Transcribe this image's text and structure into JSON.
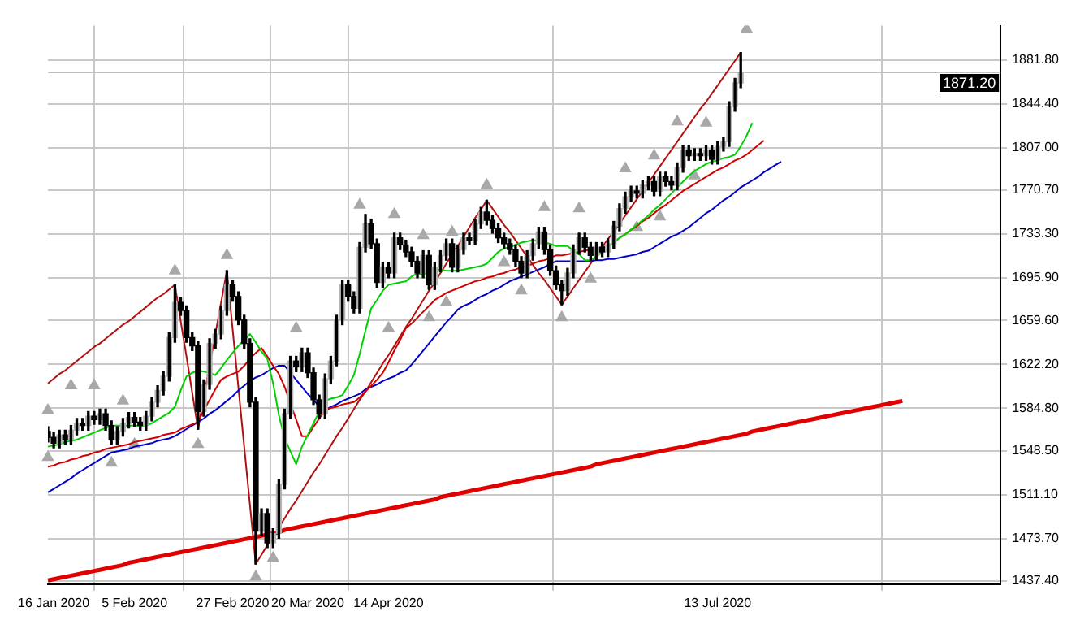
{
  "chart_data": {
    "type": "candlestick",
    "categories": [
      null,
      "16 Jan 2020",
      null,
      null,
      null,
      null,
      null,
      null,
      null,
      null,
      null,
      null,
      null,
      null,
      null,
      "5 Feb 2020",
      null,
      null,
      null,
      null,
      null,
      null,
      null,
      null,
      null,
      null,
      null,
      null,
      null,
      null,
      null,
      null,
      "27 Feb 2020",
      null,
      null,
      null,
      null,
      null,
      null,
      null,
      null,
      null,
      null,
      null,
      null,
      "20 Mar 2020",
      null,
      null,
      null,
      null,
      null,
      null,
      null,
      null,
      null,
      null,
      null,
      null,
      null,
      "14 Apr 2020",
      null,
      null,
      null,
      null,
      null,
      null,
      null,
      null,
      null,
      null,
      null,
      null,
      null,
      null,
      null,
      null,
      null,
      null,
      null,
      null,
      null,
      null,
      null,
      null,
      null,
      null,
      null,
      null,
      null,
      null,
      null,
      null,
      null,
      null,
      null,
      null,
      null,
      null,
      null,
      null,
      null,
      null,
      null,
      null,
      null,
      null,
      null,
      null,
      null,
      null,
      null,
      null,
      null,
      null,
      null,
      null,
      "13 Jul 2020",
      null,
      null,
      null,
      null,
      null,
      null,
      null,
      null,
      null,
      null,
      null,
      null,
      null,
      null,
      null,
      null,
      null,
      null,
      null,
      null,
      null,
      null,
      null,
      null,
      null,
      null,
      null,
      null,
      null,
      null,
      null,
      null,
      null,
      null,
      null,
      null,
      null,
      null,
      null,
      null,
      null,
      null,
      null,
      null,
      null,
      null,
      null,
      null,
      null
    ],
    "ohlc": [
      [
        1565,
        1569,
        1556,
        1560
      ],
      [
        1560,
        1564,
        1551,
        1555
      ],
      [
        1555,
        1566,
        1551,
        1562
      ],
      [
        1562,
        1566,
        1554,
        1558
      ],
      [
        1558,
        1570,
        1554,
        1566
      ],
      [
        1566,
        1576,
        1562,
        1572
      ],
      [
        1572,
        1576,
        1566,
        1570
      ],
      [
        1570,
        1582,
        1566,
        1578
      ],
      [
        1578,
        1582,
        1571,
        1575
      ],
      [
        1575,
        1584,
        1571,
        1580
      ],
      [
        1580,
        1584,
        1566,
        1570
      ],
      [
        1570,
        1574,
        1554,
        1558
      ],
      [
        1558,
        1569,
        1554,
        1565
      ],
      [
        1565,
        1576,
        1561,
        1572
      ],
      [
        1572,
        1581,
        1568,
        1577
      ],
      [
        1577,
        1581,
        1569,
        1573
      ],
      [
        1573,
        1577,
        1566,
        1570
      ],
      [
        1570,
        1582,
        1566,
        1578
      ],
      [
        1578,
        1594,
        1574,
        1590
      ],
      [
        1590,
        1604,
        1586,
        1600
      ],
      [
        1600,
        1616,
        1596,
        1612
      ],
      [
        1612,
        1649,
        1608,
        1645
      ],
      [
        1645,
        1690,
        1641,
        1675
      ],
      [
        1675,
        1679,
        1664,
        1668
      ],
      [
        1668,
        1672,
        1641,
        1645
      ],
      [
        1645,
        1649,
        1634,
        1638
      ],
      [
        1638,
        1642,
        1567,
        1582
      ],
      [
        1582,
        1609,
        1578,
        1605
      ],
      [
        1605,
        1644,
        1601,
        1640
      ],
      [
        1640,
        1652,
        1636,
        1648
      ],
      [
        1648,
        1672,
        1644,
        1668
      ],
      [
        1668,
        1702,
        1664,
        1690
      ],
      [
        1690,
        1694,
        1676,
        1680
      ],
      [
        1680,
        1684,
        1656,
        1660
      ],
      [
        1660,
        1664,
        1636,
        1640
      ],
      [
        1640,
        1644,
        1586,
        1590
      ],
      [
        1590,
        1594,
        1452,
        1480
      ],
      [
        1480,
        1499,
        1476,
        1495
      ],
      [
        1495,
        1499,
        1466,
        1470
      ],
      [
        1470,
        1482,
        1466,
        1478
      ],
      [
        1478,
        1524,
        1474,
        1520
      ],
      [
        1520,
        1584,
        1516,
        1580
      ],
      [
        1580,
        1629,
        1576,
        1625
      ],
      [
        1625,
        1629,
        1616,
        1620
      ],
      [
        1620,
        1636,
        1616,
        1632
      ],
      [
        1632,
        1636,
        1611,
        1615
      ],
      [
        1615,
        1619,
        1588,
        1592
      ],
      [
        1592,
        1596,
        1576,
        1580
      ],
      [
        1580,
        1614,
        1576,
        1610
      ],
      [
        1610,
        1629,
        1606,
        1625
      ],
      [
        1625,
        1664,
        1621,
        1660
      ],
      [
        1660,
        1694,
        1656,
        1690
      ],
      [
        1690,
        1694,
        1676,
        1680
      ],
      [
        1680,
        1684,
        1666,
        1670
      ],
      [
        1670,
        1726,
        1666,
        1722
      ],
      [
        1722,
        1750,
        1718,
        1742
      ],
      [
        1742,
        1746,
        1721,
        1725
      ],
      [
        1725,
        1729,
        1688,
        1692
      ],
      [
        1692,
        1709,
        1688,
        1705
      ],
      [
        1705,
        1709,
        1696,
        1700
      ],
      [
        1700,
        1734,
        1696,
        1730
      ],
      [
        1730,
        1734,
        1720,
        1724
      ],
      [
        1724,
        1728,
        1714,
        1718
      ],
      [
        1718,
        1722,
        1706,
        1710
      ],
      [
        1710,
        1714,
        1696,
        1700
      ],
      [
        1700,
        1719,
        1696,
        1715
      ],
      [
        1715,
        1719,
        1686,
        1690
      ],
      [
        1690,
        1709,
        1686,
        1705
      ],
      [
        1705,
        1719,
        1701,
        1715
      ],
      [
        1715,
        1729,
        1711,
        1725
      ],
      [
        1725,
        1729,
        1701,
        1705
      ],
      [
        1705,
        1724,
        1701,
        1720
      ],
      [
        1720,
        1734,
        1716,
        1730
      ],
      [
        1730,
        1734,
        1724,
        1728
      ],
      [
        1728,
        1746,
        1724,
        1742
      ],
      [
        1742,
        1756,
        1738,
        1752
      ],
      [
        1752,
        1762,
        1741,
        1745
      ],
      [
        1745,
        1749,
        1734,
        1738
      ],
      [
        1738,
        1742,
        1726,
        1730
      ],
      [
        1730,
        1734,
        1721,
        1725
      ],
      [
        1725,
        1729,
        1716,
        1720
      ],
      [
        1720,
        1724,
        1706,
        1710
      ],
      [
        1710,
        1714,
        1696,
        1700
      ],
      [
        1700,
        1719,
        1696,
        1715
      ],
      [
        1715,
        1729,
        1711,
        1725
      ],
      [
        1725,
        1739,
        1721,
        1735
      ],
      [
        1735,
        1739,
        1716,
        1720
      ],
      [
        1720,
        1724,
        1698,
        1702
      ],
      [
        1702,
        1706,
        1686,
        1690
      ],
      [
        1690,
        1694,
        1673,
        1685
      ],
      [
        1685,
        1704,
        1681,
        1700
      ],
      [
        1700,
        1724,
        1696,
        1720
      ],
      [
        1720,
        1734,
        1716,
        1730
      ],
      [
        1730,
        1734,
        1718,
        1722
      ],
      [
        1722,
        1726,
        1711,
        1715
      ],
      [
        1715,
        1726,
        1711,
        1722
      ],
      [
        1722,
        1726,
        1714,
        1718
      ],
      [
        1718,
        1729,
        1714,
        1725
      ],
      [
        1725,
        1744,
        1721,
        1740
      ],
      [
        1740,
        1759,
        1736,
        1755
      ],
      [
        1755,
        1769,
        1751,
        1765
      ],
      [
        1765,
        1774,
        1761,
        1770
      ],
      [
        1770,
        1774,
        1764,
        1768
      ],
      [
        1768,
        1779,
        1764,
        1775
      ],
      [
        1775,
        1782,
        1771,
        1778
      ],
      [
        1778,
        1782,
        1766,
        1770
      ],
      [
        1770,
        1786,
        1766,
        1782
      ],
      [
        1782,
        1786,
        1774,
        1778
      ],
      [
        1778,
        1782,
        1771,
        1775
      ],
      [
        1775,
        1794,
        1771,
        1790
      ],
      [
        1790,
        1809,
        1786,
        1805
      ],
      [
        1805,
        1809,
        1796,
        1800
      ],
      [
        1800,
        1806,
        1796,
        1802
      ],
      [
        1802,
        1806,
        1796,
        1800
      ],
      [
        1800,
        1809,
        1796,
        1805
      ],
      [
        1805,
        1809,
        1793,
        1797
      ],
      [
        1797,
        1812,
        1793,
        1808
      ],
      [
        1808,
        1816,
        1804,
        1812
      ],
      [
        1812,
        1846,
        1808,
        1842
      ],
      [
        1842,
        1866,
        1838,
        1862
      ],
      [
        1862,
        1888,
        1858,
        1871.2
      ],
      null,
      null,
      null,
      null,
      null,
      null,
      null,
      null,
      null,
      null,
      null,
      null,
      null,
      null,
      null,
      null,
      null,
      null,
      null,
      null,
      null,
      null,
      null,
      null,
      null,
      null,
      null,
      null,
      null,
      null,
      null,
      null,
      null,
      null,
      null,
      null,
      null,
      null,
      null,
      null,
      null,
      null,
      null,
      null,
      null
    ],
    "series": [
      {
        "type": "line",
        "color": "#00d000",
        "values": [
          1552,
          1553,
          1554,
          1556,
          1557,
          1558,
          1560,
          1562,
          1564,
          1566,
          1568,
          1570,
          1570,
          1570,
          1570,
          1570,
          1570,
          1570,
          1572,
          1575,
          1578,
          1581,
          1586,
          1600,
          1612,
          1615,
          1617,
          1616,
          1615,
          1613,
          1619,
          1626,
          1632,
          1638,
          1643,
          1648,
          1641,
          1633,
          1627,
          1606,
          1579,
          1559,
          1548,
          1537,
          1552,
          1562,
          1572,
          1582,
          1591,
          1593,
          1594,
          1596,
          1604,
          1613,
          1631,
          1651,
          1670,
          1677,
          1685,
          1690,
          1691,
          1692,
          1693,
          1697,
          1700,
          1698,
          1703,
          1703,
          1703,
          1702,
          1702,
          1702,
          1703,
          1704,
          1705,
          1706,
          1708,
          1713,
          1718,
          1721,
          1722,
          1724,
          1726,
          1727,
          1728,
          1727,
          1726,
          1725,
          1723,
          1723,
          1723,
          1719,
          1716,
          1711,
          1711,
          1714,
          1718,
          1722,
          1726,
          1730,
          1733,
          1737,
          1741,
          1745,
          1749,
          1754,
          1758,
          1763,
          1768,
          1773,
          1778,
          1783,
          1787,
          1790,
          1793,
          1795,
          1796,
          1798,
          1799,
          1801,
          1808,
          1817,
          1828,
          null,
          null,
          null,
          null,
          null,
          null,
          null,
          null,
          null,
          null,
          null,
          null,
          null,
          null,
          null,
          null,
          null,
          null,
          null,
          null,
          null,
          null,
          null,
          null,
          null,
          null,
          null,
          null,
          null,
          null,
          null,
          null,
          null,
          null,
          null,
          null,
          null,
          null,
          null,
          null,
          null,
          null,
          null
        ]
      },
      {
        "type": "line",
        "color": "#d00000",
        "values": [
          1535,
          1536,
          1538,
          1539,
          1541,
          1542,
          1544,
          1545,
          1547,
          1548,
          1550,
          1551,
          1552,
          1553,
          1554,
          1556,
          1557,
          1558,
          1559,
          1560,
          1562,
          1563,
          1564,
          1567,
          1569,
          1571,
          1573,
          1583,
          1592,
          1601,
          1609,
          1612,
          1614,
          1616,
          1621,
          1627,
          1632,
          1636,
          1629,
          1621,
          1614,
          1603,
          1589,
          1575,
          1561,
          1561,
          1569,
          1576,
          1583,
          1585,
          1586,
          1588,
          1589,
          1590,
          1594,
          1599,
          1604,
          1609,
          1615,
          1624,
          1634,
          1643,
          1653,
          1657,
          1662,
          1667,
          1672,
          1677,
          1680,
          1683,
          1685,
          1687,
          1689,
          1691,
          1693,
          1694,
          1696,
          1697,
          1699,
          1700,
          1702,
          1703,
          1705,
          1706,
          1708,
          1710,
          1711,
          1713,
          1715,
          1715,
          1716,
          1717,
          1718,
          1719,
          1720,
          1721,
          1722,
          1723,
          1726,
          1730,
          1733,
          1737,
          1740,
          1744,
          1747,
          1751,
          1755,
          1758,
          1762,
          1766,
          1770,
          1773,
          1776,
          1779,
          1782,
          1785,
          1788,
          1790,
          1793,
          1796,
          1798,
          1801,
          1805,
          1809,
          1813,
          null,
          null,
          null,
          null,
          null,
          null,
          null,
          null,
          null,
          null,
          null,
          null,
          null,
          null,
          null,
          null,
          null,
          null,
          null,
          null,
          null,
          null,
          null,
          null,
          null,
          null,
          null,
          null,
          null,
          null,
          null,
          null,
          null,
          null,
          null,
          null,
          null,
          null,
          null,
          null,
          null
        ]
      },
      {
        "type": "line",
        "color": "#0000c8",
        "values": [
          1513,
          1516,
          1519,
          1522,
          1525,
          1529,
          1532,
          1535,
          1538,
          1541,
          1544,
          1547,
          1548,
          1549,
          1550,
          1552,
          1553,
          1554,
          1555,
          1557,
          1558,
          1559,
          1561,
          1564,
          1567,
          1570,
          1573,
          1576,
          1580,
          1583,
          1587,
          1591,
          1595,
          1600,
          1604,
          1608,
          1611,
          1613,
          1616,
          1619,
          1621,
          1621,
          1615,
          1609,
          1603,
          1597,
          1592,
          1586,
          1583,
          1586,
          1588,
          1591,
          1593,
          1595,
          1597,
          1601,
          1603,
          1605,
          1608,
          1610,
          1612,
          1615,
          1617,
          1622,
          1628,
          1634,
          1640,
          1646,
          1652,
          1658,
          1663,
          1669,
          1672,
          1674,
          1677,
          1680,
          1682,
          1685,
          1687,
          1690,
          1693,
          1695,
          1697,
          1699,
          1701,
          1703,
          1705,
          1708,
          1710,
          1710,
          1710,
          1710,
          1710,
          1710,
          1710,
          1711,
          1711,
          1712,
          1712,
          1713,
          1714,
          1715,
          1716,
          1718,
          1719,
          1722,
          1725,
          1728,
          1731,
          1733,
          1736,
          1739,
          1743,
          1747,
          1751,
          1754,
          1758,
          1762,
          1765,
          1769,
          1773,
          1776,
          1779,
          1782,
          1786,
          1789,
          1792,
          1795,
          null,
          null,
          null,
          null,
          null,
          null,
          null,
          null,
          null,
          null,
          null,
          null,
          null,
          null,
          null,
          null,
          null,
          null,
          null,
          null,
          null,
          null,
          null,
          null,
          null,
          null,
          null,
          null,
          null,
          null,
          null,
          null,
          null,
          null,
          null,
          null,
          null,
          null
        ]
      },
      {
        "type": "line",
        "color": "#b01010",
        "values": [
          1606,
          1610,
          1614,
          1617,
          1621,
          1625,
          1629,
          1633,
          1637,
          1640,
          1644,
          1648,
          1652,
          1656,
          1659,
          1663,
          1667,
          1671,
          1675,
          1679,
          1682,
          1686,
          1690,
          1659,
          1629,
          1598,
          1567,
          1594,
          1621,
          1648,
          1675,
          1702,
          1652,
          1602,
          1552,
          1502,
          1452,
          1460,
          1468,
          1475,
          1483,
          1491,
          1499,
          1506,
          1514,
          1522,
          1530,
          1537,
          1545,
          1553,
          1561,
          1568,
          1576,
          1584,
          1592,
          1599,
          1607,
          1615,
          1623,
          1630,
          1638,
          1646,
          1654,
          1661,
          1669,
          1677,
          1685,
          1692,
          1700,
          1708,
          1716,
          1723,
          1731,
          1739,
          1747,
          1754,
          1762,
          1755,
          1748,
          1741,
          1735,
          1728,
          1721,
          1714,
          1707,
          1700,
          1694,
          1687,
          1680,
          1673,
          1680,
          1687,
          1694,
          1701,
          1708,
          1715,
          1722,
          1729,
          1735,
          1742,
          1749,
          1756,
          1763,
          1770,
          1777,
          1784,
          1791,
          1798,
          1805,
          1812,
          1819,
          1826,
          1833,
          1840,
          1846,
          1853,
          1860,
          1867,
          1874,
          1881,
          1888,
          null,
          null,
          null,
          null,
          null,
          null,
          null,
          null,
          null,
          null,
          null,
          null,
          null,
          null,
          null,
          null,
          null,
          null,
          null,
          null,
          null,
          null,
          null,
          null,
          null,
          null,
          null,
          null,
          null,
          null,
          null,
          null,
          null,
          null,
          null,
          null,
          null,
          null,
          null,
          null,
          null,
          null,
          null,
          null,
          null
        ]
      },
      {
        "type": "line",
        "color": "#e00000",
        "values": [
          1438,
          1439,
          1440,
          1441,
          1442,
          1443,
          1444,
          1445,
          1446,
          1447,
          1448,
          1449,
          1450,
          1451,
          1453,
          1454,
          1455,
          1456,
          1457,
          1458,
          1459,
          1460,
          1461,
          1462,
          1463,
          1464,
          1465,
          1466,
          1467,
          1468,
          1469,
          1470,
          1471,
          1472,
          1473,
          1474,
          1475,
          1476,
          1477,
          1478,
          1479,
          1481,
          1482,
          1483,
          1484,
          1485,
          1486,
          1487,
          1488,
          1489,
          1490,
          1491,
          1492,
          1493,
          1494,
          1495,
          1496,
          1497,
          1498,
          1499,
          1500,
          1501,
          1502,
          1503,
          1504,
          1505,
          1506,
          1507,
          1509,
          1510,
          1511,
          1512,
          1513,
          1514,
          1515,
          1516,
          1517,
          1518,
          1519,
          1520,
          1521,
          1522,
          1523,
          1524,
          1525,
          1526,
          1527,
          1528,
          1529,
          1530,
          1531,
          1532,
          1533,
          1534,
          1535,
          1537,
          1538,
          1539,
          1540,
          1541,
          1542,
          1543,
          1544,
          1545,
          1546,
          1547,
          1548,
          1549,
          1550,
          1551,
          1552,
          1553,
          1554,
          1555,
          1556,
          1557,
          1558,
          1559,
          1560,
          1561,
          1562,
          1563,
          1565,
          1566,
          1567,
          1568,
          1569,
          1570,
          1571,
          1572,
          1573,
          1574,
          1575,
          1576,
          1577,
          1578,
          1579,
          1580,
          1581,
          1582,
          1583,
          1584,
          1585,
          1586,
          1587,
          1588,
          1589,
          1590,
          1591,
          null,
          null,
          null,
          null,
          null,
          null,
          null,
          null,
          null,
          null,
          null,
          null,
          null,
          null,
          null,
          null,
          null
        ]
      },
      {
        "type": "scatter",
        "color": "#a8a8a8",
        "marker": "triangle",
        "values": [
          1583,
          null,
          null,
          null,
          1604,
          null,
          null,
          null,
          1604,
          null,
          null,
          null,
          null,
          1591,
          null,
          null,
          null,
          null,
          null,
          null,
          null,
          null,
          1702,
          null,
          null,
          null,
          null,
          null,
          null,
          null,
          null,
          1715,
          null,
          null,
          null,
          null,
          null,
          null,
          null,
          null,
          null,
          null,
          null,
          1653,
          null,
          null,
          null,
          null,
          null,
          null,
          null,
          null,
          null,
          null,
          1758,
          null,
          null,
          null,
          null,
          null,
          1750,
          null,
          null,
          null,
          null,
          1732,
          null,
          null,
          null,
          null,
          1735,
          null,
          null,
          null,
          null,
          null,
          1775,
          null,
          null,
          null,
          null,
          null,
          null,
          null,
          null,
          null,
          1756,
          null,
          null,
          null,
          null,
          null,
          1755,
          null,
          null,
          null,
          null,
          null,
          null,
          null,
          1789,
          null,
          null,
          null,
          null,
          1800,
          null,
          null,
          null,
          1829,
          null,
          null,
          null,
          null,
          1828,
          null,
          null,
          null,
          null,
          null,
          null,
          1908,
          null,
          null,
          null,
          null,
          null,
          null,
          null,
          null,
          null,
          null,
          null,
          null,
          null,
          null,
          null,
          null,
          null,
          null,
          null,
          null,
          null,
          null,
          null,
          null,
          null,
          null,
          null,
          null,
          null,
          null,
          null,
          null,
          null,
          null,
          null,
          null,
          null,
          null,
          null,
          null,
          null,
          null,
          null,
          null
        ]
      },
      {
        "type": "scatter",
        "color": "#a8a8a8",
        "marker": "triangle",
        "values": [
          1543,
          null,
          null,
          null,
          null,
          null,
          null,
          null,
          null,
          null,
          null,
          1538,
          null,
          null,
          null,
          1554,
          null,
          null,
          null,
          null,
          null,
          null,
          null,
          null,
          null,
          null,
          1554,
          null,
          null,
          null,
          null,
          null,
          null,
          null,
          null,
          null,
          1441,
          null,
          null,
          1457,
          null,
          null,
          null,
          null,
          null,
          null,
          null,
          null,
          null,
          null,
          null,
          null,
          null,
          null,
          null,
          null,
          null,
          null,
          null,
          1653,
          null,
          null,
          null,
          null,
          null,
          null,
          1662,
          null,
          null,
          1675,
          null,
          null,
          null,
          null,
          null,
          null,
          null,
          null,
          null,
          1709,
          null,
          null,
          1685,
          null,
          null,
          null,
          null,
          null,
          null,
          1662,
          null,
          null,
          null,
          null,
          1695,
          null,
          null,
          null,
          null,
          null,
          null,
          null,
          1739,
          null,
          null,
          null,
          1748,
          null,
          null,
          null,
          null,
          null,
          1783,
          null,
          null,
          null,
          null,
          null,
          null,
          null,
          null,
          null,
          null,
          null,
          null,
          null,
          null,
          null,
          null,
          null,
          null,
          null,
          null,
          null,
          null,
          null,
          null,
          null,
          null,
          null,
          null,
          null,
          null,
          null,
          null,
          null,
          null,
          null,
          null,
          null,
          null,
          null,
          null,
          null,
          null,
          null,
          null,
          null,
          null,
          null,
          null,
          null,
          null,
          null,
          null,
          null
        ]
      }
    ],
    "ylim": [
      1434.8,
      1910.9
    ],
    "yticks": [
      {
        "value": 1437.4,
        "label": "1437.40"
      },
      {
        "value": 1473.7,
        "label": "1473.70"
      },
      {
        "value": 1511.1,
        "label": "1511.10"
      },
      {
        "value": 1548.5,
        "label": "1548.50"
      },
      {
        "value": 1584.8,
        "label": "1584.80"
      },
      {
        "value": 1622.2,
        "label": "1622.20"
      },
      {
        "value": 1659.6,
        "label": "1659.60"
      },
      {
        "value": 1695.9,
        "label": "1695.90"
      },
      {
        "value": 1733.3,
        "label": "1733.30"
      },
      {
        "value": 1770.7,
        "label": "1770.70"
      },
      {
        "value": 1807,
        "label": "1807.00"
      },
      {
        "value": 1844.4,
        "label": "1844.40"
      },
      {
        "value": 1881.8,
        "label": "1881.80"
      }
    ],
    "ref_lines": [
      {
        "axis": "y",
        "value": 1871.2,
        "label": "1871.20",
        "color": "#c0c0c0"
      }
    ],
    "grid": true,
    "legend": false
  }
}
